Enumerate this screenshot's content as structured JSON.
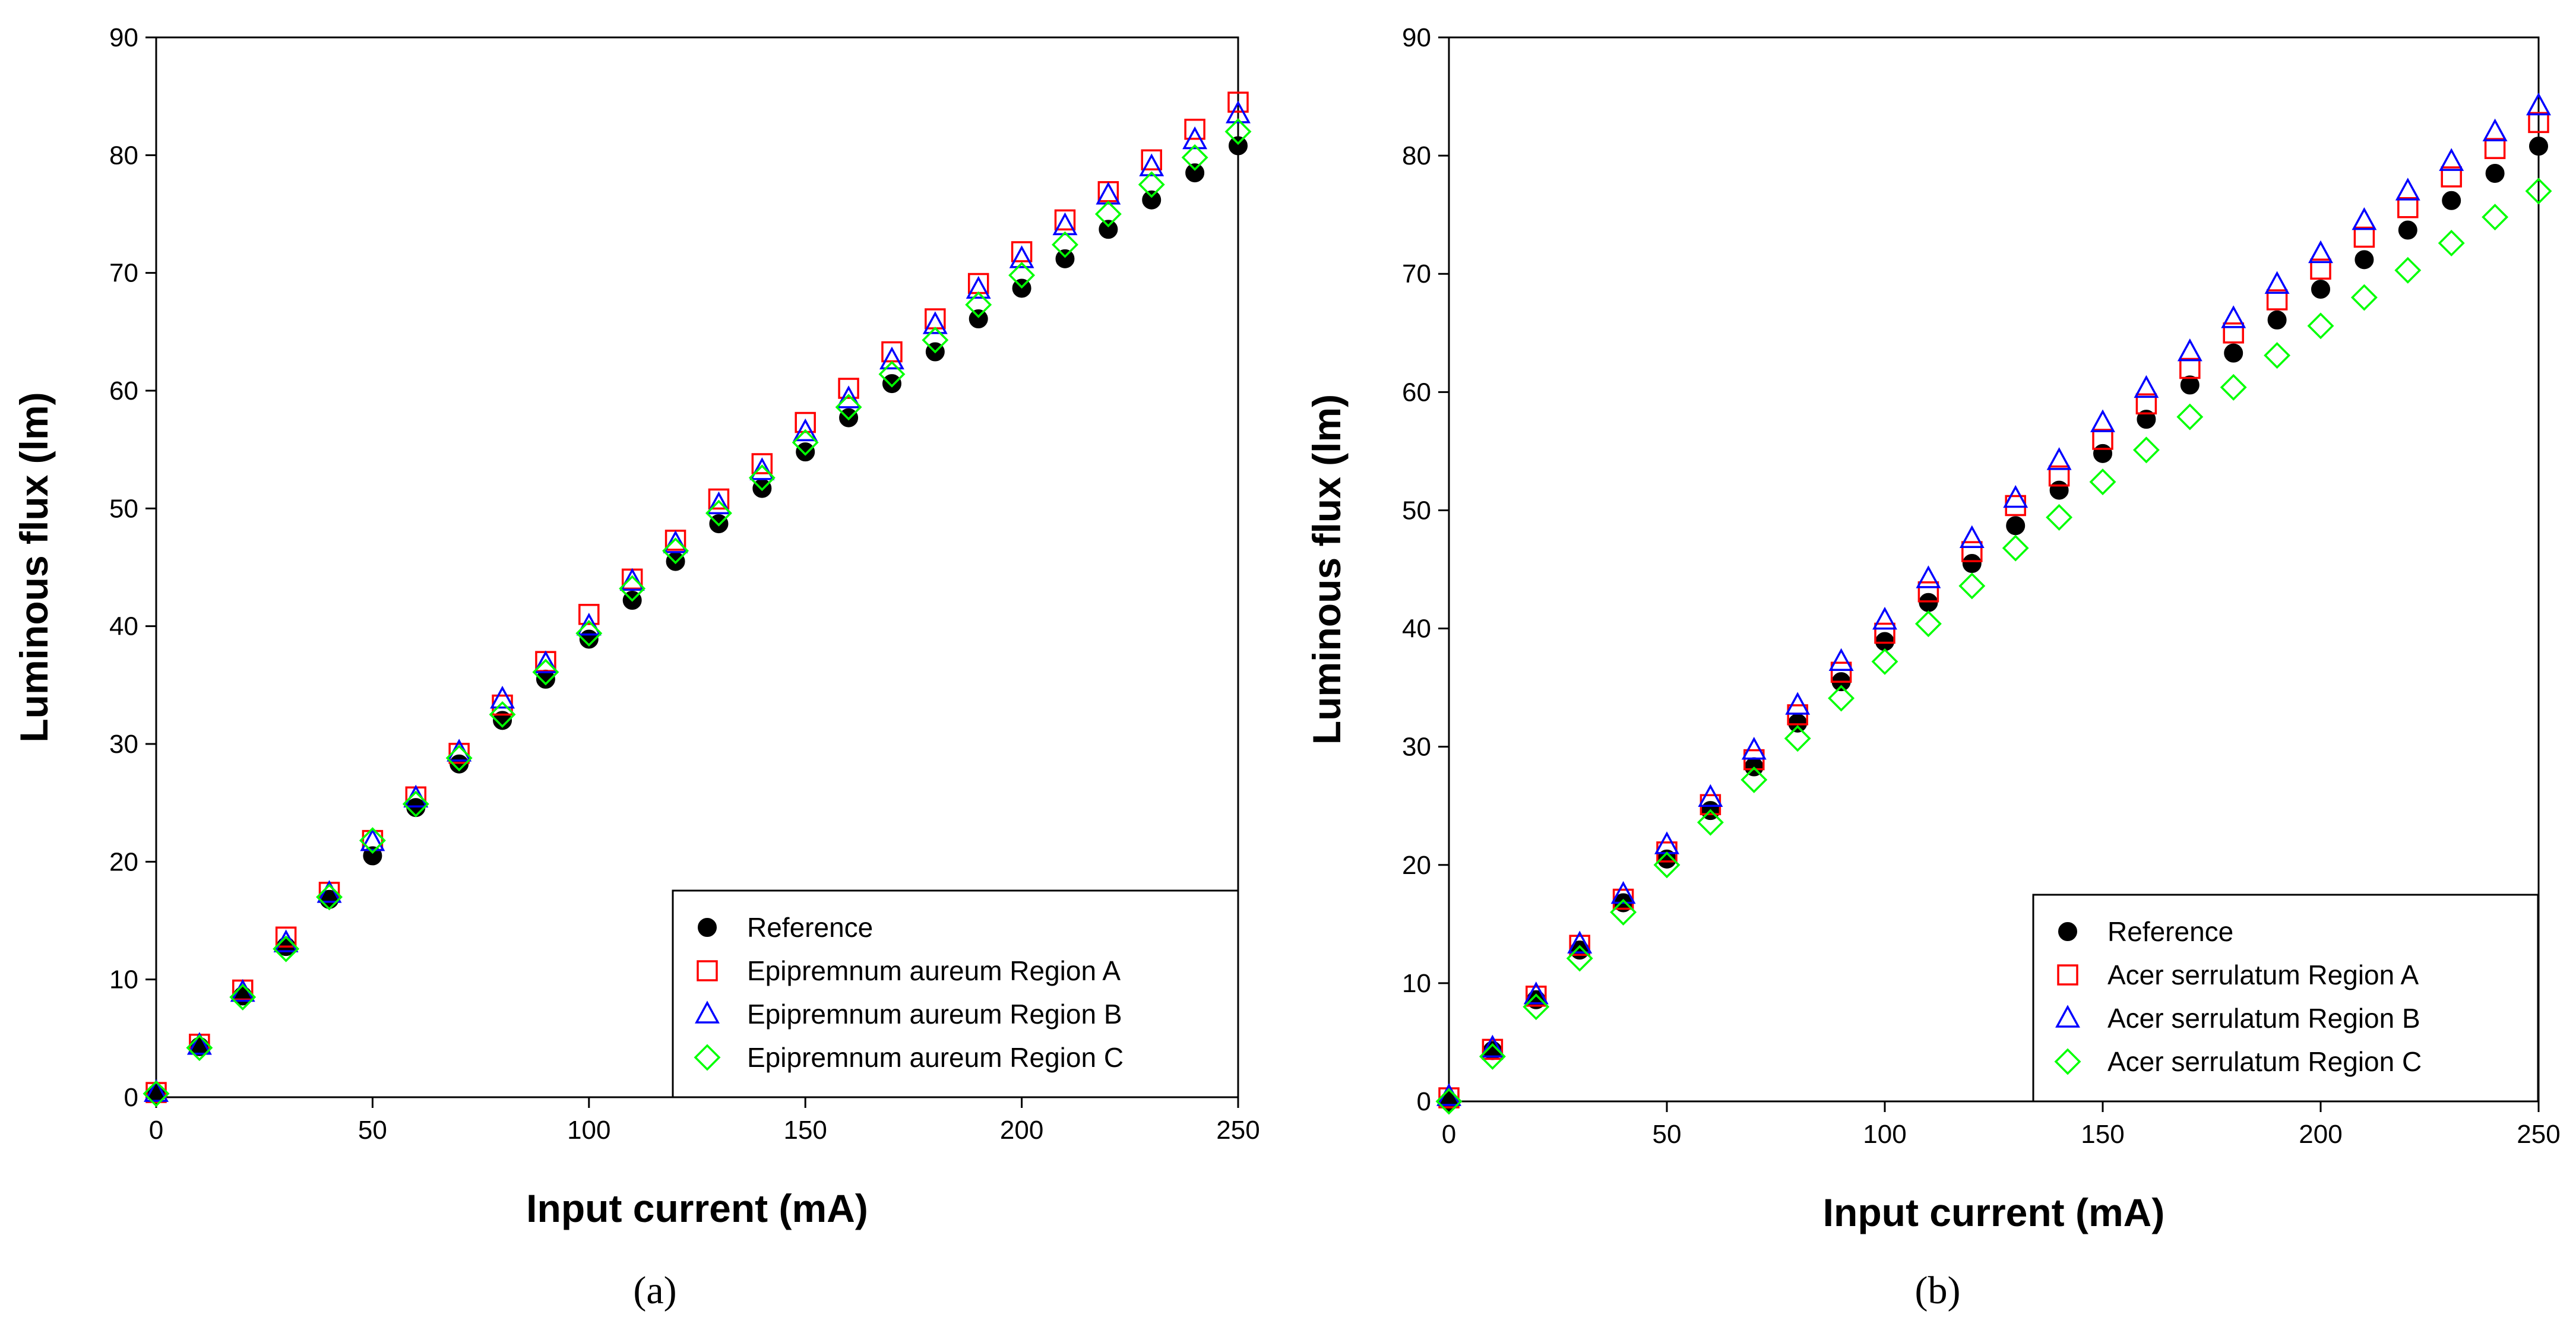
{
  "figure": {
    "panel_labels": [
      "(a)",
      "(b)"
    ]
  },
  "chart_data": [
    {
      "type": "scatter",
      "panel": "(a)",
      "title": "",
      "xlabel": "Input current (mA)",
      "ylabel": "Luminous flux (lm)",
      "xlim": [
        0,
        250
      ],
      "ylim": [
        0,
        90
      ],
      "xticks": [
        0,
        50,
        100,
        150,
        200,
        250
      ],
      "yticks": [
        0,
        10,
        20,
        30,
        40,
        50,
        60,
        70,
        80,
        90
      ],
      "grid": false,
      "legend_position": "bottom-right",
      "x": [
        0,
        10,
        20,
        30,
        40,
        50,
        60,
        70,
        80,
        90,
        100,
        110,
        120,
        130,
        140,
        150,
        160,
        170,
        180,
        190,
        200,
        210,
        220,
        230,
        240,
        250
      ],
      "series": [
        {
          "name": "Reference",
          "marker": "filled-circle",
          "color": "#000000",
          "values": [
            0.3,
            4.3,
            8.6,
            12.8,
            16.8,
            20.5,
            24.6,
            28.3,
            32.0,
            35.5,
            38.9,
            42.2,
            45.5,
            48.7,
            51.7,
            54.8,
            57.7,
            60.6,
            63.3,
            66.1,
            68.7,
            71.2,
            73.7,
            76.2,
            78.5,
            80.8
          ]
        },
        {
          "name": "Epipremnum aureum Region A",
          "marker": "square",
          "color": "#ff0000",
          "values": [
            0.4,
            4.5,
            9.1,
            13.6,
            17.4,
            21.8,
            25.5,
            29.2,
            33.3,
            37.0,
            41.0,
            44.0,
            47.3,
            50.8,
            53.8,
            57.3,
            60.2,
            63.3,
            66.1,
            69.1,
            71.8,
            74.5,
            76.9,
            79.6,
            82.2,
            84.5
          ]
        },
        {
          "name": "Epipremnum aureum Region B",
          "marker": "triangle",
          "color": "#0000ff",
          "values": [
            0.4,
            4.4,
            8.9,
            13.1,
            17.3,
            21.7,
            25.4,
            29.3,
            33.8,
            36.8,
            40.0,
            43.8,
            47.0,
            50.3,
            53.2,
            56.5,
            59.3,
            62.6,
            65.6,
            68.6,
            71.2,
            74.0,
            76.6,
            79.0,
            81.3,
            83.5
          ]
        },
        {
          "name": "Epipremnum aureum Region C",
          "marker": "diamond",
          "color": "#00ff00",
          "values": [
            0.3,
            4.2,
            8.5,
            12.6,
            17.0,
            21.8,
            24.9,
            28.8,
            32.5,
            36.1,
            39.4,
            43.2,
            46.4,
            49.6,
            52.6,
            55.6,
            58.6,
            61.4,
            64.3,
            67.3,
            69.8,
            72.4,
            75.0,
            77.5,
            79.8,
            82.0
          ]
        }
      ]
    },
    {
      "type": "scatter",
      "panel": "(b)",
      "title": "",
      "xlabel": "Input current (mA)",
      "ylabel": "Luminous flux (lm)",
      "xlim": [
        0,
        250
      ],
      "ylim": [
        0,
        90
      ],
      "xticks": [
        0,
        50,
        100,
        150,
        200,
        250
      ],
      "yticks": [
        0,
        10,
        20,
        30,
        40,
        50,
        60,
        70,
        80,
        90
      ],
      "grid": false,
      "legend_position": "bottom-right",
      "x": [
        0,
        10,
        20,
        30,
        40,
        50,
        60,
        70,
        80,
        90,
        100,
        110,
        120,
        130,
        140,
        150,
        160,
        170,
        180,
        190,
        200,
        210,
        220,
        230,
        240,
        250
      ],
      "series": [
        {
          "name": "Reference",
          "marker": "filled-circle",
          "color": "#000000",
          "values": [
            0.0,
            4.3,
            8.6,
            12.8,
            16.8,
            20.5,
            24.6,
            28.3,
            32.0,
            35.5,
            38.9,
            42.2,
            45.5,
            48.7,
            51.7,
            54.8,
            57.7,
            60.6,
            63.3,
            66.1,
            68.7,
            71.2,
            73.7,
            76.2,
            78.5,
            80.8
          ]
        },
        {
          "name": "Acer serrulatum Region A",
          "marker": "square",
          "color": "#ff0000",
          "values": [
            0.3,
            4.4,
            8.9,
            13.2,
            17.1,
            21.1,
            25.1,
            28.9,
            32.7,
            36.3,
            39.6,
            43.1,
            46.5,
            50.4,
            52.9,
            56.0,
            59.0,
            62.0,
            65.0,
            67.8,
            70.4,
            73.1,
            75.6,
            78.2,
            80.6,
            82.8
          ]
        },
        {
          "name": "Acer serrulatum Region B",
          "marker": "triangle",
          "color": "#0000ff",
          "values": [
            0.4,
            4.5,
            9.0,
            13.3,
            17.5,
            21.7,
            25.7,
            29.7,
            33.5,
            37.2,
            40.7,
            44.2,
            47.6,
            51.0,
            54.2,
            57.4,
            60.3,
            63.4,
            66.2,
            69.1,
            71.7,
            74.5,
            77.0,
            79.5,
            82.0,
            84.2
          ]
        },
        {
          "name": "Acer serrulatum Region C",
          "marker": "diamond",
          "color": "#00ff00",
          "values": [
            0.0,
            3.8,
            8.0,
            12.1,
            16.0,
            20.0,
            23.6,
            27.2,
            30.7,
            34.1,
            37.2,
            40.4,
            43.6,
            46.8,
            49.4,
            52.4,
            55.1,
            57.9,
            60.4,
            63.1,
            65.6,
            68.0,
            70.3,
            72.6,
            74.8,
            77.0
          ]
        }
      ]
    }
  ]
}
